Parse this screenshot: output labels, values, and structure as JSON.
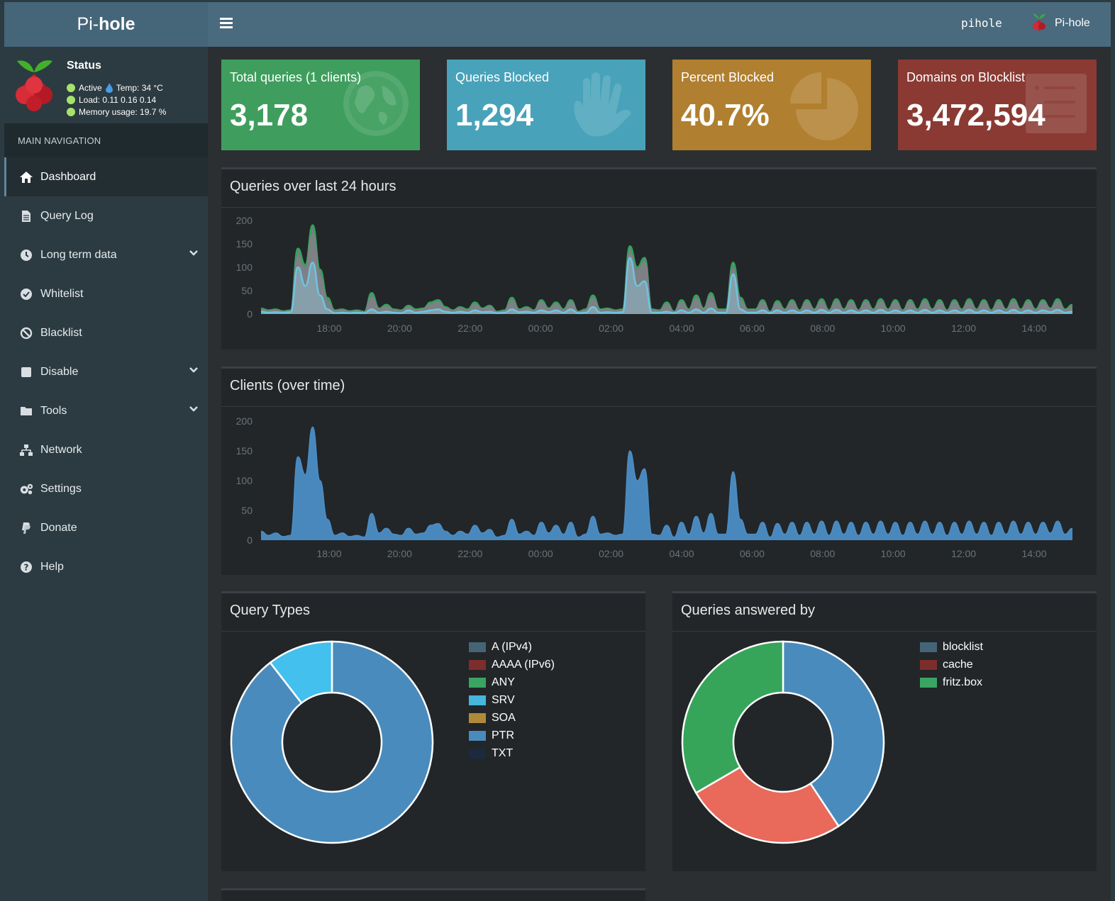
{
  "header": {
    "logo_light": "Pi-",
    "logo_bold": "hole",
    "hostname": "pihole",
    "user_label": "Pi-hole"
  },
  "status": {
    "title": "Status",
    "active": "Active",
    "temp": "Temp: 34 °C",
    "load": "Load:  0.11  0.16  0.14",
    "memory": "Memory usage:  19.7 %"
  },
  "sidebar": {
    "header": "MAIN NAVIGATION",
    "items": [
      {
        "label": "Dashboard",
        "icon": "home-icon"
      },
      {
        "label": "Query Log",
        "icon": "file-icon"
      },
      {
        "label": "Long term data",
        "icon": "clock-icon"
      },
      {
        "label": "Whitelist",
        "icon": "check-circle-icon"
      },
      {
        "label": "Blacklist",
        "icon": "ban-icon"
      },
      {
        "label": "Disable",
        "icon": "stop-icon"
      },
      {
        "label": "Tools",
        "icon": "folder-icon"
      },
      {
        "label": "Network",
        "icon": "network-icon"
      },
      {
        "label": "Settings",
        "icon": "gears-icon"
      },
      {
        "label": "Donate",
        "icon": "paypal-icon"
      },
      {
        "label": "Help",
        "icon": "question-circle-icon"
      }
    ]
  },
  "stats": [
    {
      "label": "Total queries (1 clients)",
      "value": "3,178",
      "color": "#3f9e5e",
      "icon": "globe-icon"
    },
    {
      "label": "Queries Blocked",
      "value": "1,294",
      "color": "#48a2b9",
      "icon": "hand-icon"
    },
    {
      "label": "Percent Blocked",
      "value": "40.7%",
      "color": "#b07f2f",
      "icon": "pie-icon"
    },
    {
      "label": "Domains on Blocklist",
      "value": "3,472,594",
      "color": "#8a3a33",
      "icon": "list-icon"
    }
  ],
  "panels": {
    "queries_title": "Queries over last 24 hours",
    "clients_title": "Clients (over time)",
    "types_title": "Query Types",
    "answered_title": "Queries answered by"
  },
  "chart_data": [
    {
      "type": "area",
      "title": "Queries over last 24 hours",
      "x_ticks": [
        "18:00",
        "20:00",
        "22:00",
        "00:00",
        "02:00",
        "04:00",
        "06:00",
        "08:00",
        "10:00",
        "12:00",
        "14:00"
      ],
      "y_ticks": [
        0,
        50,
        100,
        150,
        200
      ],
      "ylim": [
        0,
        200
      ],
      "series": [
        {
          "color": "#2fa35a",
          "values": [
            12,
            8,
            10,
            6,
            8,
            140,
            105,
            190,
            95,
            35,
            8,
            10,
            6,
            8,
            5,
            45,
            12,
            20,
            10,
            8,
            18,
            10,
            12,
            25,
            30,
            15,
            8,
            15,
            10,
            25,
            12,
            18,
            5,
            8,
            35,
            10,
            15,
            8,
            30,
            12,
            25,
            10,
            30,
            5,
            10,
            40,
            10,
            12,
            8,
            10,
            145,
            100,
            120,
            10,
            8,
            25,
            5,
            30,
            10,
            40,
            12,
            45,
            10,
            10,
            110,
            35,
            10,
            10,
            30,
            5,
            28,
            10,
            30,
            8,
            30,
            10,
            32,
            8,
            32,
            10,
            30,
            8,
            30,
            10,
            32,
            10,
            30,
            8,
            30,
            10,
            32,
            10,
            30,
            8,
            30,
            10,
            32,
            10,
            30,
            8,
            30,
            10,
            32,
            10,
            30,
            10,
            30,
            12,
            32,
            10,
            20
          ]
        },
        {
          "color": "#7d8185",
          "values": [
            8,
            6,
            8,
            5,
            6,
            120,
            95,
            170,
            80,
            25,
            6,
            8,
            5,
            6,
            4,
            35,
            10,
            15,
            8,
            6,
            14,
            8,
            10,
            20,
            25,
            12,
            6,
            12,
            8,
            20,
            10,
            15,
            4,
            6,
            28,
            8,
            12,
            6,
            25,
            10,
            20,
            8,
            25,
            4,
            8,
            32,
            8,
            10,
            6,
            8,
            130,
            90,
            110,
            8,
            6,
            20,
            4,
            25,
            8,
            32,
            10,
            38,
            8,
            8,
            95,
            28,
            8,
            8,
            25,
            4,
            22,
            8,
            25,
            6,
            25,
            8,
            26,
            6,
            26,
            8,
            25,
            6,
            25,
            8,
            26,
            8,
            25,
            6,
            25,
            8,
            26,
            8,
            25,
            6,
            25,
            8,
            26,
            8,
            25,
            6,
            25,
            8,
            26,
            8,
            25,
            8,
            25,
            10,
            26,
            8,
            16
          ]
        },
        {
          "color": "#6ec4e0",
          "values": [
            5,
            3,
            4,
            3,
            4,
            100,
            60,
            110,
            40,
            10,
            2,
            3,
            2,
            3,
            2,
            10,
            3,
            5,
            3,
            2,
            8,
            3,
            5,
            8,
            10,
            5,
            3,
            5,
            3,
            8,
            4,
            5,
            2,
            3,
            10,
            4,
            5,
            3,
            8,
            4,
            8,
            3,
            10,
            2,
            3,
            15,
            3,
            4,
            3,
            4,
            120,
            60,
            70,
            3,
            3,
            5,
            2,
            8,
            3,
            10,
            3,
            12,
            3,
            3,
            85,
            10,
            3,
            3,
            8,
            2,
            8,
            3,
            8,
            3,
            8,
            3,
            9,
            3,
            9,
            3,
            8,
            3,
            8,
            3,
            9,
            3,
            8,
            3,
            8,
            3,
            9,
            3,
            8,
            3,
            8,
            3,
            9,
            3,
            8,
            3,
            8,
            3,
            9,
            3,
            8,
            3,
            8,
            4,
            9,
            3,
            5
          ]
        }
      ]
    },
    {
      "type": "area",
      "title": "Clients (over time)",
      "x_ticks": [
        "18:00",
        "20:00",
        "22:00",
        "00:00",
        "02:00",
        "04:00",
        "06:00",
        "08:00",
        "10:00",
        "12:00",
        "14:00"
      ],
      "y_ticks": [
        0,
        50,
        100,
        150,
        200
      ],
      "ylim": [
        0,
        200
      ],
      "series": [
        {
          "color": "#4c8dc5",
          "values": [
            15,
            8,
            12,
            6,
            8,
            140,
            110,
            190,
            100,
            35,
            8,
            12,
            6,
            8,
            5,
            45,
            12,
            20,
            10,
            8,
            20,
            10,
            12,
            25,
            28,
            15,
            8,
            15,
            10,
            25,
            12,
            18,
            5,
            8,
            35,
            10,
            15,
            8,
            30,
            12,
            25,
            10,
            30,
            5,
            10,
            40,
            10,
            12,
            8,
            10,
            150,
            100,
            120,
            10,
            8,
            25,
            5,
            30,
            10,
            40,
            12,
            45,
            10,
            10,
            115,
            35,
            10,
            10,
            30,
            5,
            28,
            10,
            30,
            8,
            30,
            10,
            32,
            8,
            32,
            10,
            30,
            8,
            30,
            10,
            32,
            10,
            30,
            8,
            30,
            10,
            32,
            10,
            30,
            8,
            30,
            10,
            32,
            10,
            30,
            8,
            30,
            10,
            32,
            10,
            30,
            10,
            30,
            12,
            32,
            10,
            20
          ]
        }
      ]
    },
    {
      "type": "pie",
      "title": "Query Types",
      "categories": [
        "A (IPv4)",
        "AAAA (IPv6)",
        "ANY",
        "SRV",
        "SOA",
        "PTR",
        "TXT"
      ],
      "values": [
        0,
        0,
        0,
        10.5,
        0,
        89.5,
        0
      ],
      "colors": [
        "#456577",
        "#7d2e2b",
        "#3aa562",
        "#45b6dd",
        "#b08a3a",
        "#4a8bbd",
        "#1b2a3f"
      ],
      "slice_colors": [
        "#456577",
        "#7d2e2b",
        "#3aa562",
        "#43c0ee",
        "#b08a3a",
        "#4a8bbd",
        "#1b2a3f"
      ]
    },
    {
      "type": "pie",
      "title": "Queries answered by",
      "categories": [
        "blocklist",
        "cache",
        "fritz.box"
      ],
      "values": [
        40.7,
        25.9,
        33.4
      ],
      "colors": [
        "#456577",
        "#7d2e2b",
        "#3aa562"
      ],
      "slice_colors": [
        "#4a8bbd",
        "#e9695a",
        "#36a55a"
      ],
      "order_note": ""
    }
  ]
}
